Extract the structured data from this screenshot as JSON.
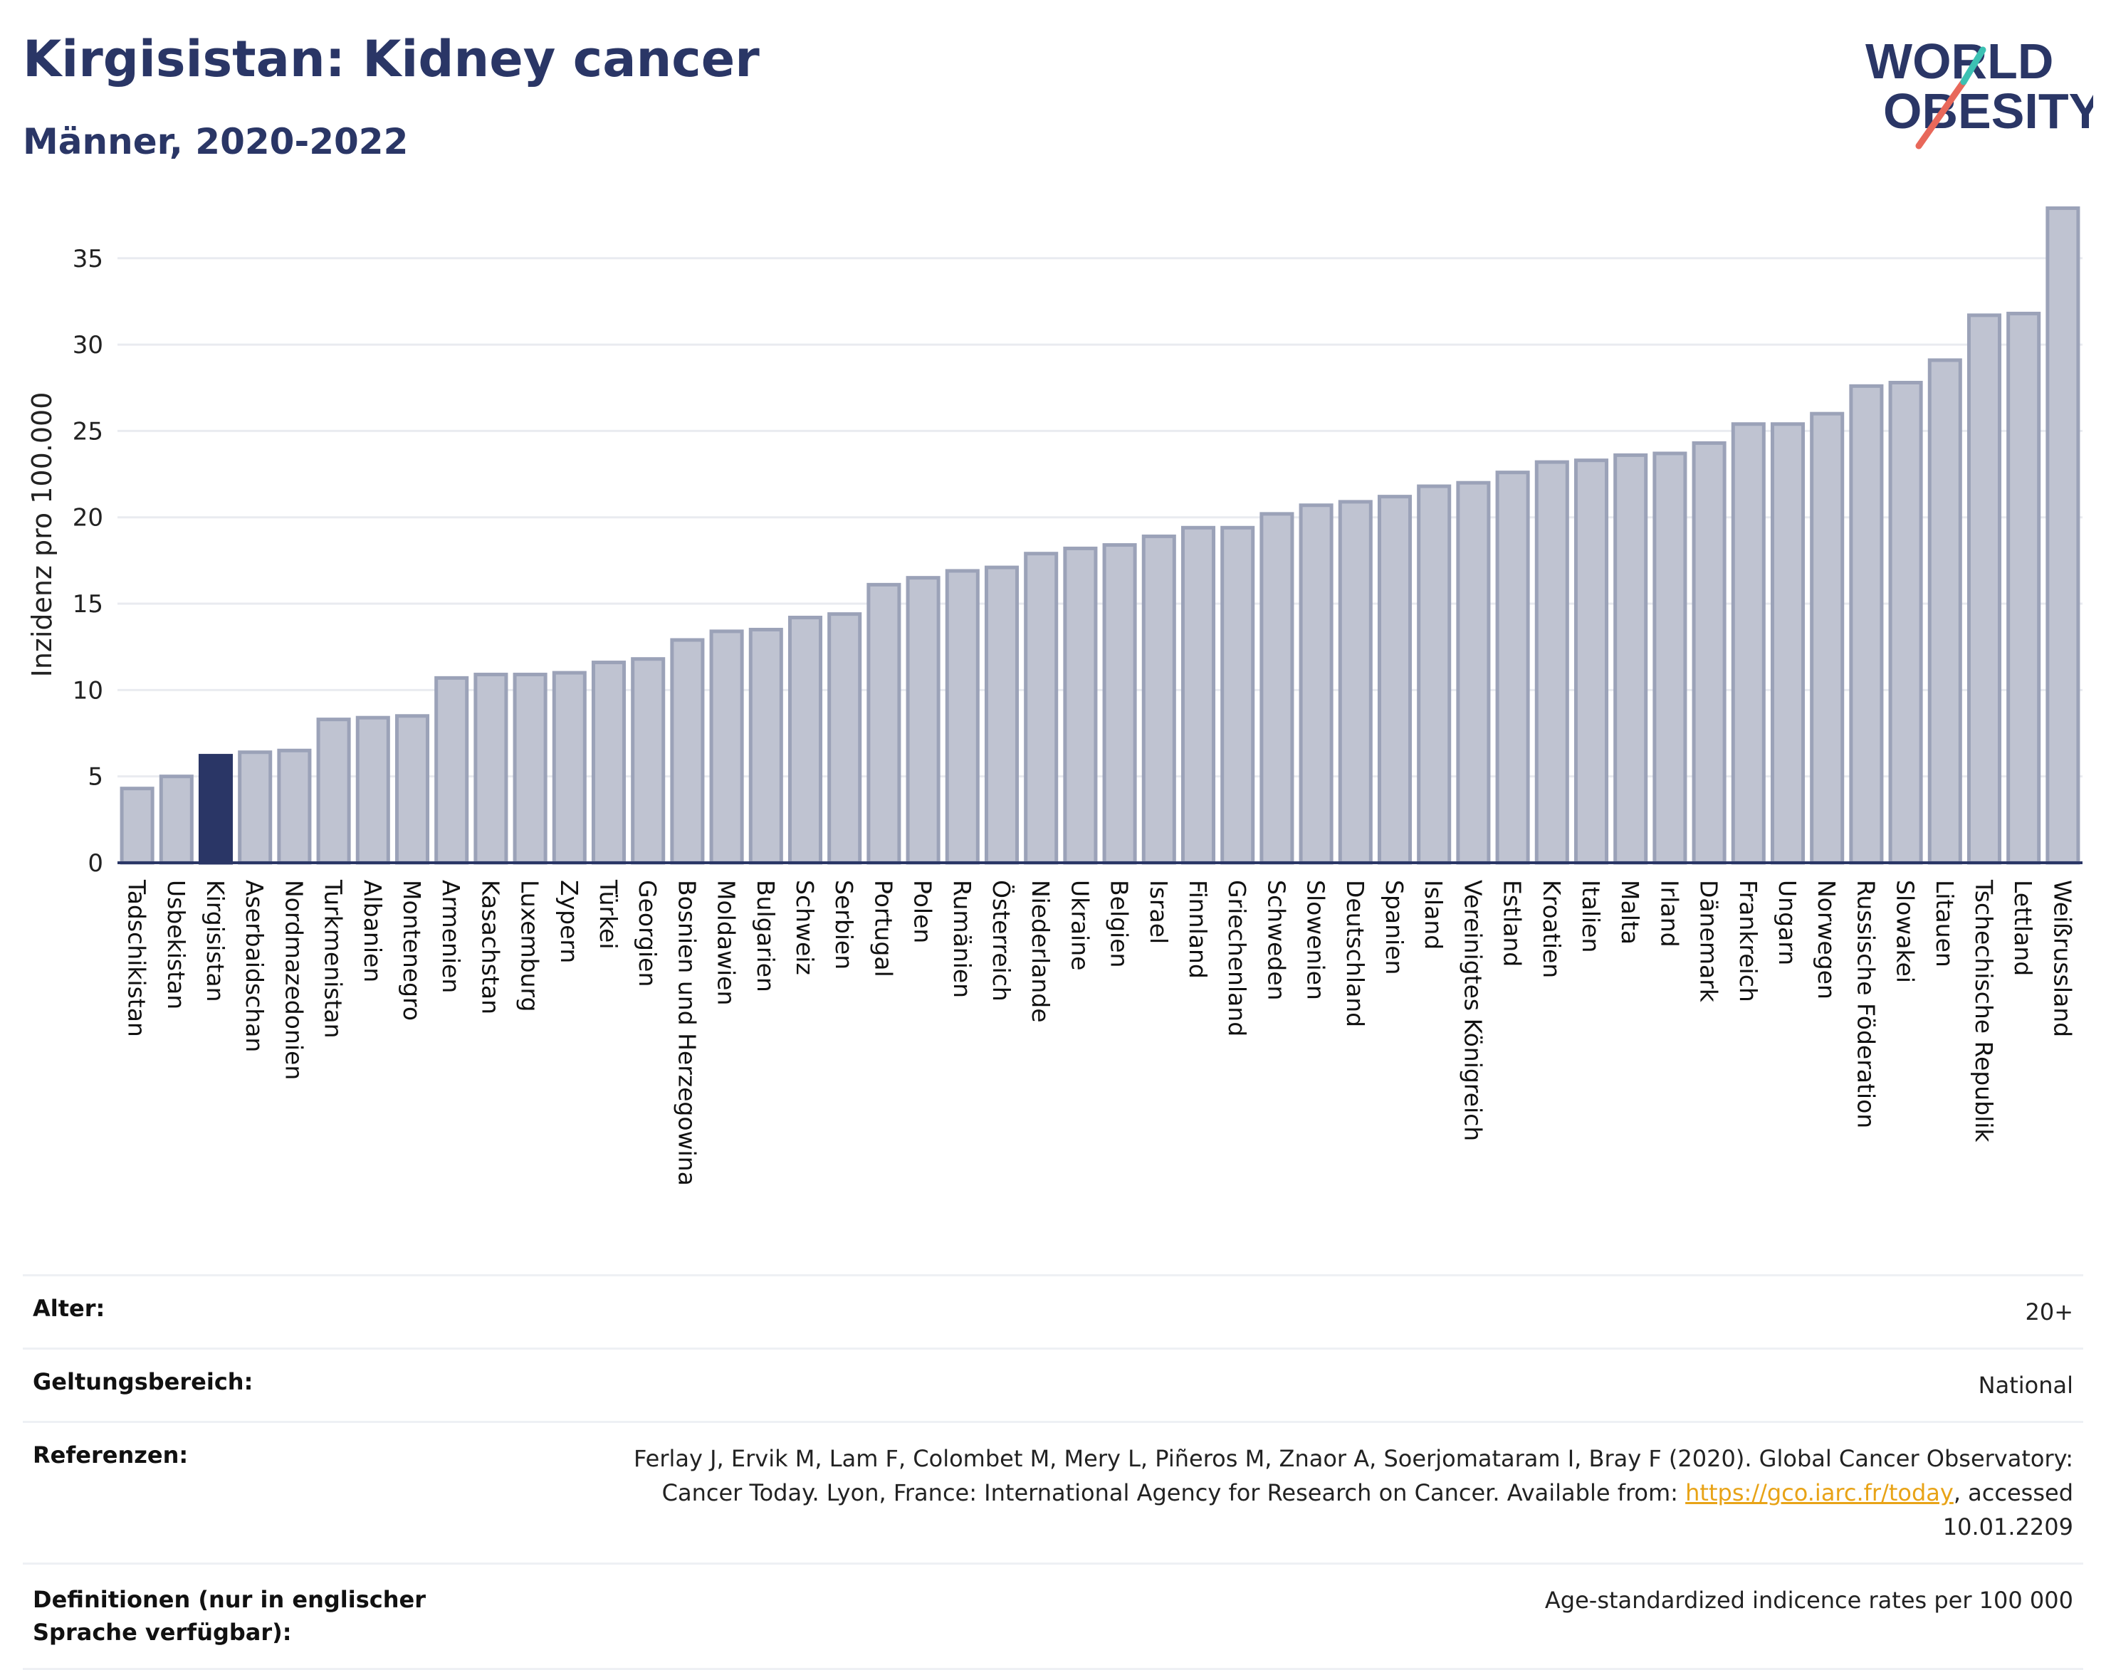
{
  "title": "Kirgisistan: Kidney cancer",
  "subtitle": "Männer, 2020-2022",
  "logo": {
    "line1": "WORLD",
    "line2": "OBESITY"
  },
  "colors": {
    "title": "#2a3666",
    "bar": "#bfc3d1",
    "bar_edge": "#9ba2b8",
    "highlight": "#2a3666",
    "link": "#e8a317",
    "grid": "#e9ebf0"
  },
  "chart_data": {
    "type": "bar",
    "ylabel": "Inzidenz pro 100.000",
    "ylim": [
      0,
      38
    ],
    "yticks": [
      0,
      5,
      10,
      15,
      20,
      25,
      30,
      35
    ],
    "grid": true,
    "highlight": "Kirgisistan",
    "categories": [
      "Tadschikistan",
      "Usbekistan",
      "Kirgisistan",
      "Aserbaidschan",
      "Nordmazedonien",
      "Turkmenistan",
      "Albanien",
      "Montenegro",
      "Armenien",
      "Kasachstan",
      "Luxemburg",
      "Zypern",
      "Türkei",
      "Georgien",
      "Bosnien und Herzegowina",
      "Moldawien",
      "Bulgarien",
      "Schweiz",
      "Serbien",
      "Portugal",
      "Polen",
      "Rumänien",
      "Österreich",
      "Niederlande",
      "Ukraine",
      "Belgien",
      "Israel",
      "Finnland",
      "Griechenland",
      "Schweden",
      "Slowenien",
      "Deutschland",
      "Spanien",
      "Island",
      "Vereinigtes Königreich",
      "Estland",
      "Kroatien",
      "Italien",
      "Malta",
      "Irland",
      "Dänemark",
      "Frankreich",
      "Ungarn",
      "Norwegen",
      "Russische Föderation",
      "Slowakei",
      "Litauen",
      "Tschechische Republik",
      "Lettland",
      "Weißrussland"
    ],
    "values": [
      4.3,
      5.0,
      6.2,
      6.4,
      6.5,
      8.3,
      8.4,
      8.5,
      10.7,
      10.9,
      10.9,
      11.0,
      11.6,
      11.8,
      12.9,
      13.4,
      13.5,
      14.2,
      14.4,
      16.1,
      16.5,
      16.9,
      17.1,
      17.9,
      18.2,
      18.4,
      18.9,
      19.4,
      19.4,
      20.2,
      20.7,
      20.9,
      21.2,
      21.8,
      22.0,
      22.6,
      23.2,
      23.3,
      23.6,
      23.7,
      24.3,
      25.4,
      25.4,
      26.0,
      27.6,
      27.8,
      29.1,
      31.7,
      31.8,
      37.9
    ]
  },
  "footer": {
    "age_label": "Alter:",
    "age_value": "20+",
    "scope_label": "Geltungsbereich:",
    "scope_value": "National",
    "ref_label": "Referenzen:",
    "ref_text": "Ferlay J, Ervik M, Lam F, Colombet M, Mery L, Piñeros M, Znaor A, Soerjomataram I, Bray F (2020). Global Cancer Observatory: Cancer Today. Lyon, France: International Agency for Research on Cancer. Available from:",
    "ref_link": "https://gco.iarc.fr/today",
    "ref_suffix": ", accessed 10.01.2209",
    "def_label": "Definitionen (nur in englischer Sprache verfügbar):",
    "def_value": "Age-standardized indicence rates per 100 000"
  }
}
